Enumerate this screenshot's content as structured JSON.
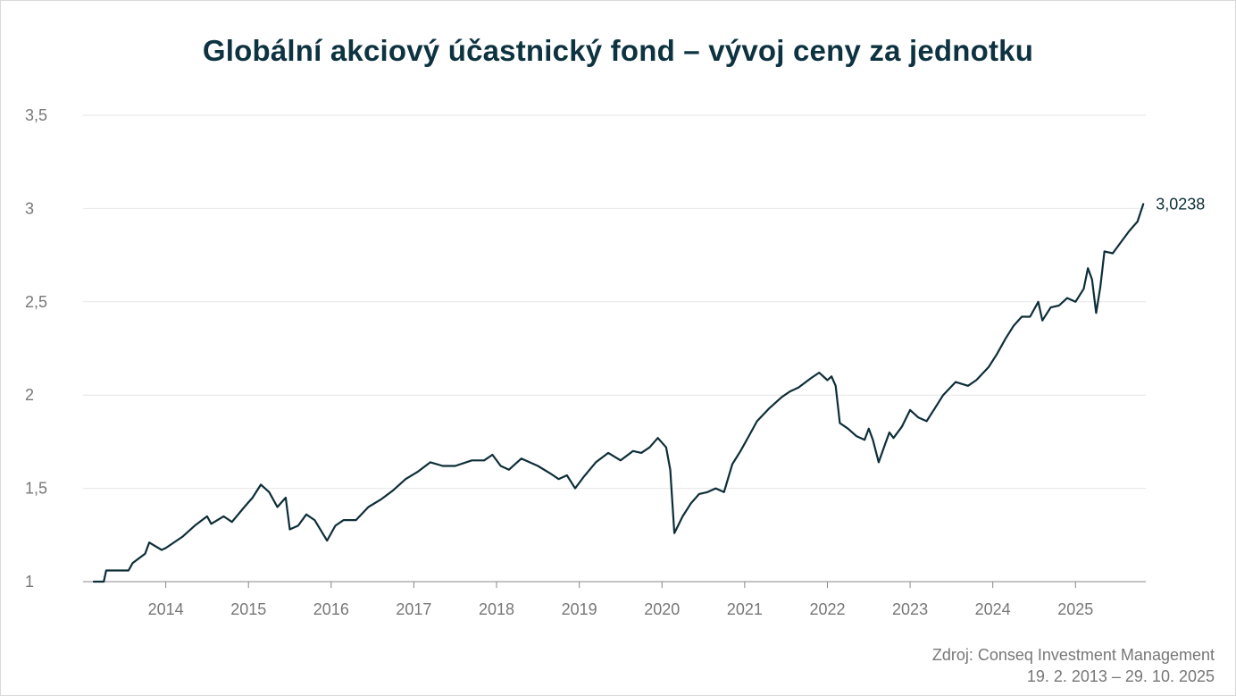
{
  "title": "Globální akciový účastnický fond – vývoj ceny za jednotku",
  "source": {
    "line1": "Zdroj: Conseq Investment Management",
    "line2": "19. 2. 2013 – 29. 10. 2025"
  },
  "colors": {
    "line": "#0d2e38",
    "title": "#0d3340",
    "grid": "#e6e6e6",
    "axis": "#888888",
    "tick_text": "#777777"
  },
  "chart_data": {
    "type": "line",
    "title": "Globální akciový účastnický fond – vývoj ceny za jednotku",
    "xlabel": "",
    "ylabel": "",
    "xlim": [
      2013.0,
      2025.85
    ],
    "ylim": [
      1,
      3.5
    ],
    "y_ticks": [
      1,
      1.5,
      2,
      2.5,
      3,
      3.5
    ],
    "y_tick_labels": [
      "1",
      "1,5",
      "2",
      "2,5",
      "3",
      "3,5"
    ],
    "x_ticks": [
      2014,
      2015,
      2016,
      2017,
      2018,
      2019,
      2020,
      2021,
      2022,
      2023,
      2024,
      2025
    ],
    "x_tick_labels": [
      "2014",
      "2015",
      "2016",
      "2017",
      "2018",
      "2019",
      "2020",
      "2021",
      "2022",
      "2023",
      "2024",
      "2025"
    ],
    "grid": "horizontal",
    "end_label": "3,0238",
    "series": [
      {
        "x": [
          2013.13,
          2013.25,
          2013.28,
          2013.55,
          2013.6,
          2013.75,
          2013.8,
          2013.95,
          2014.0,
          2014.2,
          2014.35,
          2014.5,
          2014.55,
          2014.7,
          2014.8,
          2014.95,
          2015.05,
          2015.15,
          2015.25,
          2015.35,
          2015.45,
          2015.5,
          2015.6,
          2015.7,
          2015.8,
          2015.95,
          2016.05,
          2016.15,
          2016.3,
          2016.45,
          2016.6,
          2016.75,
          2016.9,
          2017.05,
          2017.2,
          2017.35,
          2017.5,
          2017.7,
          2017.85,
          2017.95,
          2018.05,
          2018.15,
          2018.3,
          2018.5,
          2018.65,
          2018.75,
          2018.85,
          2018.95,
          2019.05,
          2019.2,
          2019.35,
          2019.5,
          2019.65,
          2019.75,
          2019.85,
          2019.95,
          2020.05,
          2020.1,
          2020.15,
          2020.25,
          2020.35,
          2020.45,
          2020.55,
          2020.65,
          2020.75,
          2020.85,
          2020.95,
          2021.05,
          2021.15,
          2021.3,
          2021.45,
          2021.55,
          2021.65,
          2021.8,
          2021.9,
          2022.0,
          2022.05,
          2022.1,
          2022.15,
          2022.25,
          2022.35,
          2022.45,
          2022.5,
          2022.55,
          2022.62,
          2022.7,
          2022.75,
          2022.8,
          2022.9,
          2023.0,
          2023.1,
          2023.2,
          2023.3,
          2023.4,
          2023.55,
          2023.7,
          2023.8,
          2023.95,
          2024.05,
          2024.15,
          2024.25,
          2024.35,
          2024.45,
          2024.55,
          2024.6,
          2024.7,
          2024.8,
          2024.9,
          2025.0,
          2025.1,
          2025.15,
          2025.2,
          2025.25,
          2025.3,
          2025.35,
          2025.45,
          2025.55,
          2025.65,
          2025.75,
          2025.82
        ],
        "values": [
          1.0,
          1.0,
          1.06,
          1.06,
          1.1,
          1.15,
          1.21,
          1.17,
          1.18,
          1.24,
          1.3,
          1.35,
          1.31,
          1.35,
          1.32,
          1.4,
          1.45,
          1.52,
          1.48,
          1.4,
          1.45,
          1.28,
          1.3,
          1.36,
          1.33,
          1.22,
          1.3,
          1.33,
          1.33,
          1.4,
          1.44,
          1.49,
          1.55,
          1.59,
          1.64,
          1.62,
          1.62,
          1.65,
          1.65,
          1.68,
          1.62,
          1.6,
          1.66,
          1.62,
          1.58,
          1.55,
          1.57,
          1.5,
          1.56,
          1.64,
          1.69,
          1.65,
          1.7,
          1.69,
          1.72,
          1.77,
          1.72,
          1.6,
          1.26,
          1.35,
          1.42,
          1.47,
          1.48,
          1.5,
          1.48,
          1.63,
          1.7,
          1.78,
          1.86,
          1.93,
          1.99,
          2.02,
          2.04,
          2.09,
          2.12,
          2.08,
          2.1,
          2.05,
          1.85,
          1.82,
          1.78,
          1.76,
          1.82,
          1.76,
          1.64,
          1.74,
          1.8,
          1.77,
          1.83,
          1.92,
          1.88,
          1.86,
          1.93,
          2.0,
          2.07,
          2.05,
          2.08,
          2.15,
          2.22,
          2.3,
          2.37,
          2.42,
          2.42,
          2.5,
          2.4,
          2.47,
          2.48,
          2.52,
          2.5,
          2.57,
          2.68,
          2.62,
          2.44,
          2.58,
          2.77,
          2.76,
          2.82,
          2.88,
          2.93,
          3.0238
        ]
      }
    ]
  }
}
